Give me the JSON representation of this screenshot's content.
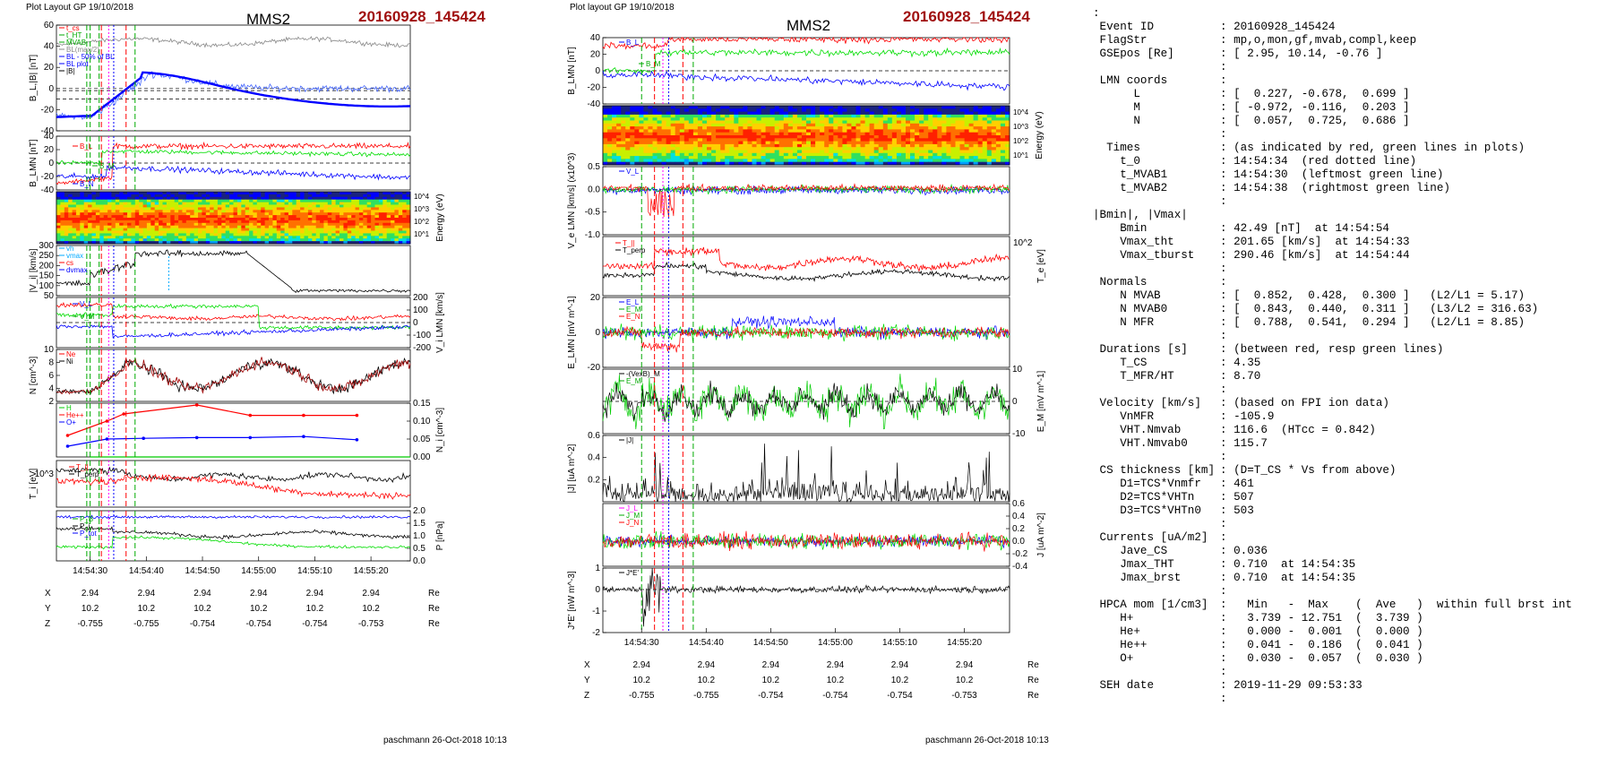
{
  "left_layout_label": "Plot Layout GP 19/10/2018",
  "mid_layout_label": "Plot layout GP 19/10/2018",
  "spacecraft": "MMS2",
  "event_id": "20160928_145424",
  "footer": "paschmann 26-Oct-2018 10:13",
  "time_ticks": [
    "14:54:30",
    "14:54:40",
    "14:54:50",
    "14:55:00",
    "14:55:10",
    "14:55:20"
  ],
  "ephemeris": {
    "rows": [
      {
        "label": "X",
        "values": [
          "2.94",
          "2.94",
          "2.94",
          "2.94",
          "2.94",
          "2.94"
        ],
        "unit": "Re"
      },
      {
        "label": "Y",
        "values": [
          "10.2",
          "10.2",
          "10.2",
          "10.2",
          "10.2",
          "10.2"
        ],
        "unit": "Re"
      },
      {
        "label": "Z",
        "values": [
          "-0.755",
          "-0.755",
          "-0.754",
          "-0.754",
          "-0.754",
          "-0.753"
        ],
        "unit": "Re"
      }
    ]
  },
  "colors": {
    "red_line": "#ff0000",
    "green_line": "#00aa00",
    "magenta_line": "#ff00ff",
    "blue_line": "#0000ff",
    "event_title": "#a01010"
  },
  "chart_data": [
    {
      "type": "line",
      "id": "left-BL",
      "ylabel": "B_L,|B| [nT]",
      "ylim": [
        -40,
        60
      ],
      "yticks": [
        -40,
        -20,
        0,
        20,
        40,
        60
      ],
      "legend": [
        "t_cs",
        "t_HT",
        "MVAB",
        "BL(max/2)",
        "BL - 50% of BL",
        "BL plot",
        "|B|"
      ]
    },
    {
      "type": "line",
      "id": "left-BLMN",
      "ylabel": "B_LMN [nT]",
      "ylim": [
        -40,
        40
      ],
      "yticks": [
        -40,
        -20,
        0,
        20,
        40
      ],
      "series": [
        {
          "name": "B_L"
        },
        {
          "name": "B_M"
        },
        {
          "name": "B_N"
        }
      ]
    },
    {
      "type": "heatmap",
      "id": "left-ionspec",
      "ylabel": "Energy (eV)",
      "yticks": [
        "10^4",
        "10^3",
        "10^2",
        "10^1"
      ]
    },
    {
      "type": "line",
      "id": "left-Vi",
      "ylabel": "|V_i| [km/s]",
      "ylim": [
        50,
        300
      ],
      "yticks": [
        50,
        100,
        150,
        200,
        250,
        300
      ],
      "legend": [
        "vh",
        "vmax",
        "cs",
        "dvmax"
      ]
    },
    {
      "type": "line",
      "id": "left-ViLMN",
      "ylabel": "V_i LMN [km/s]",
      "ylim": [
        -200,
        200
      ],
      "yticks": [
        -200,
        -100,
        0,
        100,
        200
      ],
      "series": [
        {
          "name": "V_L"
        },
        {
          "name": "V_M"
        },
        {
          "name": "V_N"
        }
      ]
    },
    {
      "type": "line",
      "id": "left-N",
      "ylabel": "N [cm^-3]",
      "ylim": [
        2,
        10
      ],
      "yticks": [
        2,
        4,
        6,
        8,
        10
      ],
      "series": [
        {
          "name": "Ne"
        },
        {
          "name": "Ni"
        }
      ]
    },
    {
      "type": "line",
      "id": "left-hpca",
      "ylabel": "N_i [cm^-3]",
      "ylim": [
        0,
        0.15
      ],
      "yticks": [
        0.0,
        0.05,
        0.1,
        0.15
      ],
      "series": [
        {
          "name": "H",
          "x": [
            0,
            9.5,
            19,
            28.5,
            38,
            47.5,
            57
          ],
          "values": [
            0,
            0,
            0,
            0,
            0,
            0,
            0
          ]
        },
        {
          "name": "He++",
          "x": [
            -4,
            3,
            6,
            19,
            28.5,
            38,
            47.5
          ],
          "values": [
            0.06,
            0.1,
            0.12,
            0.145,
            0.116,
            0.116,
            0.116
          ]
        },
        {
          "name": "O+",
          "x": [
            -4,
            3,
            9.5,
            19,
            28.5,
            38,
            47.5
          ],
          "values": [
            0.03,
            0.05,
            0.052,
            0.054,
            0.054,
            0.057,
            0.048
          ]
        }
      ]
    },
    {
      "type": "line",
      "id": "left-Ti",
      "ylabel": "T_i [eV]",
      "yticks": [
        "10^3"
      ],
      "series": [
        {
          "name": "T_||"
        },
        {
          "name": "T_perp"
        }
      ]
    },
    {
      "type": "line",
      "id": "left-P",
      "ylabel": "P [nPa]",
      "ylim": [
        0,
        2
      ],
      "yticks": [
        0,
        0.5,
        1.0,
        1.5,
        2.0
      ],
      "series": [
        {
          "name": "P_B"
        },
        {
          "name": "P_i"
        },
        {
          "name": "P_tot"
        }
      ]
    },
    {
      "type": "line",
      "id": "mid-BLMN",
      "ylabel": "B_LMN [nT]",
      "ylim": [
        -40,
        40
      ],
      "yticks": [
        -40,
        -20,
        0,
        20,
        40
      ],
      "series": [
        {
          "name": "B_L"
        },
        {
          "name": "B_M"
        },
        {
          "name": "B_N"
        }
      ]
    },
    {
      "type": "heatmap",
      "id": "mid-espec",
      "ylabel": "Energy (eV)",
      "yticks": [
        "10^4",
        "10^3",
        "10^2",
        "10^1"
      ]
    },
    {
      "type": "line",
      "id": "mid-VeLMN",
      "ylabel": "V_e LMN [km/s] (x10^3)",
      "ylim": [
        -1.0,
        0.5
      ],
      "yticks": [
        -1.0,
        -0.5,
        0.0,
        0.5
      ],
      "series": [
        {
          "name": "V_L"
        },
        {
          "name": "V_M"
        },
        {
          "name": "V_N"
        }
      ]
    },
    {
      "type": "line",
      "id": "mid-Te",
      "ylabel": "T_e [eV]",
      "yticks": [
        "10^2"
      ],
      "series": [
        {
          "name": "T_||"
        },
        {
          "name": "T_perp"
        }
      ]
    },
    {
      "type": "line",
      "id": "mid-ELMN",
      "ylabel": "E_LMN [mV m^-1]",
      "ylim": [
        -20,
        20
      ],
      "yticks": [
        -20,
        0,
        20
      ],
      "series": [
        {
          "name": "E_L"
        },
        {
          "name": "E_M"
        },
        {
          "name": "E_N"
        }
      ]
    },
    {
      "type": "line",
      "id": "mid-EM",
      "ylabel": "E_M [mV m^-1]",
      "ylim": [
        -10,
        10
      ],
      "yticks": [
        -10,
        0,
        10
      ],
      "series": [
        {
          "name": "-(VexB)_M"
        },
        {
          "name": "E_M"
        }
      ]
    },
    {
      "type": "line",
      "id": "mid-J",
      "ylabel": "|J| [uA m^-2]",
      "ylim": [
        0,
        0.6
      ],
      "yticks": [
        0.2,
        0.4,
        0.6
      ],
      "series": [
        {
          "name": "|J|"
        }
      ]
    },
    {
      "type": "line",
      "id": "mid-JLMN",
      "ylabel": "J [uA m^-2]",
      "ylim": [
        -0.4,
        0.6
      ],
      "yticks": [
        -0.4,
        -0.2,
        0.0,
        0.2,
        0.4,
        0.6
      ],
      "series": [
        {
          "name": "J_L"
        },
        {
          "name": "J_M"
        },
        {
          "name": "J_N"
        }
      ]
    },
    {
      "type": "line",
      "id": "mid-JE",
      "ylabel": "J*E' [nW m^-3]",
      "ylim": [
        -2,
        1
      ],
      "yticks": [
        -2,
        -1,
        0,
        1
      ],
      "series": [
        {
          "name": "J*E'"
        }
      ]
    }
  ],
  "summary": [
    {
      "k": ":",
      "v": ""
    },
    {
      "k": " Event ID",
      "v": ": 20160928_145424"
    },
    {
      "k": " FlagStr",
      "v": ": mp,o,mon,gf,mvab,compl,keep"
    },
    {
      "k": " GSEpos [Re]",
      "v": ": [ 2.95, 10.14, -0.76 ]"
    },
    {
      "k": "",
      "v": ":"
    },
    {
      "k": " LMN coords",
      "v": ":"
    },
    {
      "k": "      L",
      "v": ": [  0.227, -0.678,  0.699 ]"
    },
    {
      "k": "      M",
      "v": ": [ -0.972, -0.116,  0.203 ]"
    },
    {
      "k": "      N",
      "v": ": [  0.057,  0.725,  0.686 ]"
    },
    {
      "k": "",
      "v": ":"
    },
    {
      "k": "  Times",
      "v": ": (as indicated by red, green lines in plots)"
    },
    {
      "k": "    t_0",
      "v": ": 14:54:34  (red dotted line)"
    },
    {
      "k": "    t_MVAB1",
      "v": ": 14:54:30  (leftmost green line)"
    },
    {
      "k": "    t_MVAB2",
      "v": ": 14:54:38  (rightmost green line)"
    },
    {
      "k": "",
      "v": ":"
    },
    {
      "k": "|Bmin|, |Vmax|",
      "v": ""
    },
    {
      "k": "    Bmin",
      "v": ": 42.49 [nT]  at 14:54:54"
    },
    {
      "k": "    Vmax_tht",
      "v": ": 201.65 [km/s]  at 14:54:33"
    },
    {
      "k": "    Vmax_tburst",
      "v": ": 290.46 [km/s]  at 14:54:44"
    },
    {
      "k": "",
      "v": ":"
    },
    {
      "k": " Normals",
      "v": ":"
    },
    {
      "k": "    N MVAB",
      "v": ": [  0.852,  0.428,  0.300 ]   (L2/L1 = 5.17)"
    },
    {
      "k": "    N MVAB0",
      "v": ": [  0.843,  0.440,  0.311 ]   (L3/L2 = 316.63)"
    },
    {
      "k": "    N MFR",
      "v": ": [  0.788,  0.541,  0.294 ]   (L2/L1 = 8.85)"
    },
    {
      "k": "",
      "v": ":"
    },
    {
      "k": " Durations [s]",
      "v": ": (between red, resp green lines)"
    },
    {
      "k": "    T_CS",
      "v": ": 4.35"
    },
    {
      "k": "    T_MFR/HT",
      "v": ": 8.70"
    },
    {
      "k": "",
      "v": ":"
    },
    {
      "k": " Velocity [km/s]",
      "v": ": (based on FPI ion data)"
    },
    {
      "k": "    VnMFR",
      "v": ": -105.9"
    },
    {
      "k": "    VHT.Nmvab",
      "v": ": 116.6  (HTcc = 0.842)"
    },
    {
      "k": "    VHT.Nmvab0",
      "v": ": 115.7"
    },
    {
      "k": "",
      "v": ":"
    },
    {
      "k": " CS thickness [km]",
      "v": ": (D=T_CS * Vs from above)"
    },
    {
      "k": "    D1=TCS*Vnmfr",
      "v": ": 461"
    },
    {
      "k": "    D2=TCS*VHTn",
      "v": ": 507"
    },
    {
      "k": "    D3=TCS*VHTn0",
      "v": ": 503"
    },
    {
      "k": "",
      "v": ":"
    },
    {
      "k": " Currents [uA/m2]",
      "v": ":"
    },
    {
      "k": "    Jave_CS",
      "v": ": 0.036"
    },
    {
      "k": "    Jmax_THT",
      "v": ": 0.710  at 14:54:35"
    },
    {
      "k": "    Jmax_brst",
      "v": ": 0.710  at 14:54:35"
    },
    {
      "k": "",
      "v": ":"
    },
    {
      "k": " HPCA mom [1/cm3]",
      "v": ":   Min   -  Max    (  Ave   )  within full brst int"
    },
    {
      "k": "    H+",
      "v": ":   3.739 - 12.751  (  3.739 )"
    },
    {
      "k": "    He+",
      "v": ":   0.000 -  0.001  (  0.000 )"
    },
    {
      "k": "    He++",
      "v": ":   0.041 -  0.186  (  0.041 )"
    },
    {
      "k": "    O+",
      "v": ":   0.030 -  0.057  (  0.030 )"
    },
    {
      "k": "",
      "v": ":"
    },
    {
      "k": " SEH date",
      "v": ": 2019-11-29 09:53:33"
    },
    {
      "k": "",
      "v": ":"
    }
  ]
}
